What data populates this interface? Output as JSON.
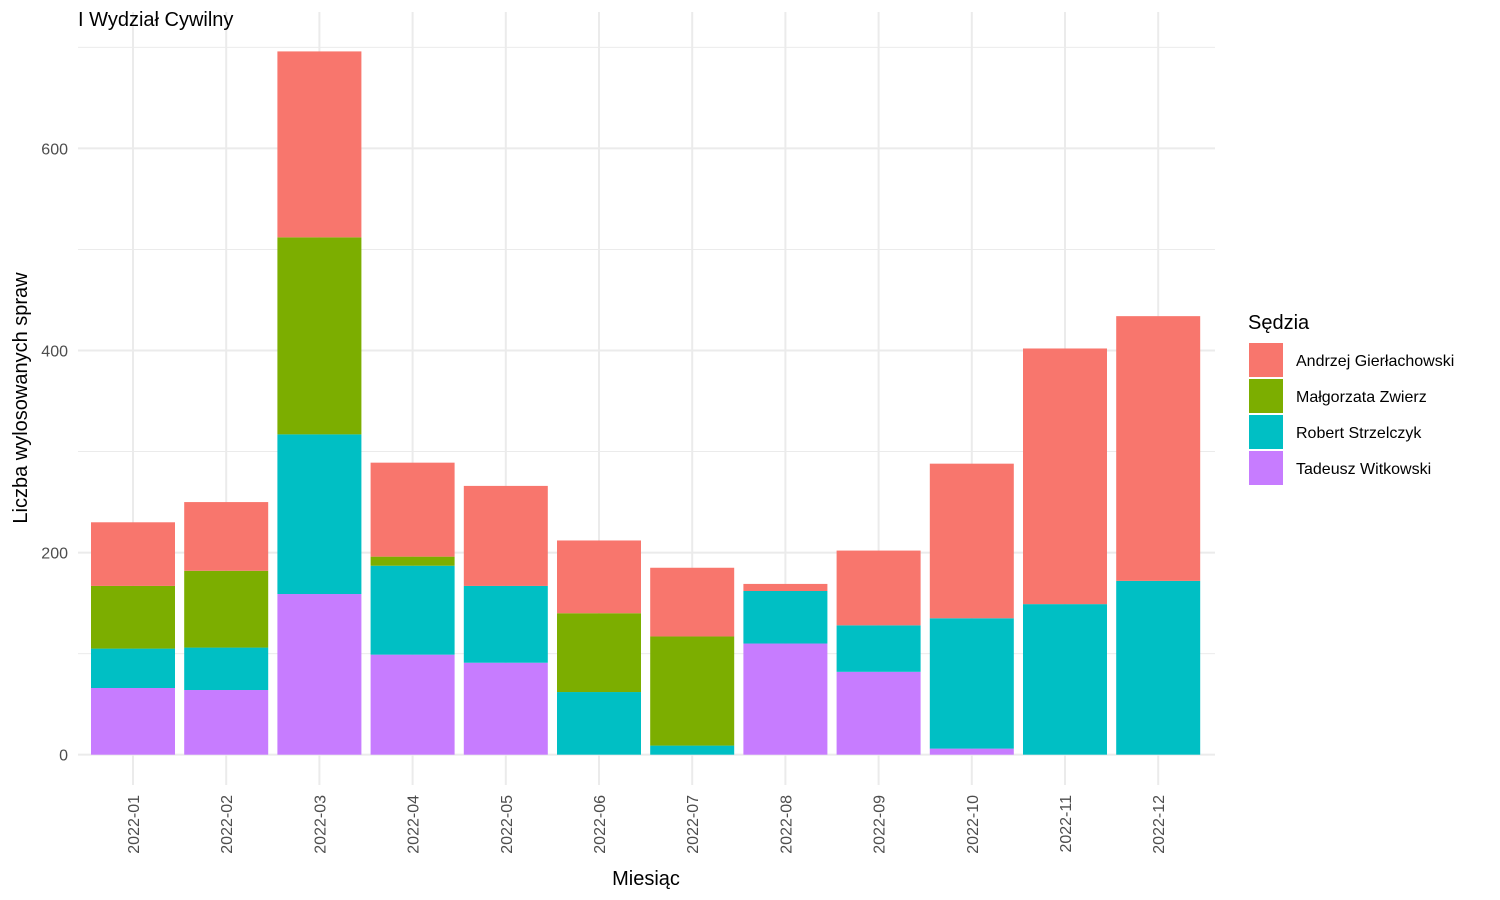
{
  "chart_data": {
    "type": "bar",
    "stacked": true,
    "title": "I Wydział Cywilny",
    "xlabel": "Miesiąc",
    "ylabel": "Liczba wylosowanych spraw",
    "ylim": [
      0,
      700
    ],
    "yticks": [
      0,
      200,
      400,
      600
    ],
    "grid": true,
    "legend_position": "right",
    "legend_title": "Sędzia",
    "categories": [
      "2022-01",
      "2022-02",
      "2022-03",
      "2022-04",
      "2022-05",
      "2022-06",
      "2022-07",
      "2022-08",
      "2022-09",
      "2022-10",
      "2022-11",
      "2022-12"
    ],
    "series": [
      {
        "name": "Tadeusz Witkowski",
        "color": "#C77CFF",
        "values": [
          66,
          64,
          159,
          99,
          91,
          0,
          0,
          110,
          82,
          6,
          0,
          0
        ]
      },
      {
        "name": "Robert Strzelczyk",
        "color": "#00BFC4",
        "values": [
          39,
          42,
          158,
          88,
          76,
          62,
          9,
          52,
          46,
          129,
          149,
          172
        ]
      },
      {
        "name": "Małgorzata Zwierz",
        "color": "#7CAE00",
        "values": [
          62,
          76,
          195,
          9,
          0,
          78,
          108,
          0,
          0,
          0,
          0,
          0
        ]
      },
      {
        "name": "Andrzej Gierłachowski",
        "color": "#F8766D",
        "values": [
          63,
          68,
          184,
          93,
          99,
          72,
          68,
          7,
          74,
          153,
          253,
          262
        ]
      }
    ]
  }
}
